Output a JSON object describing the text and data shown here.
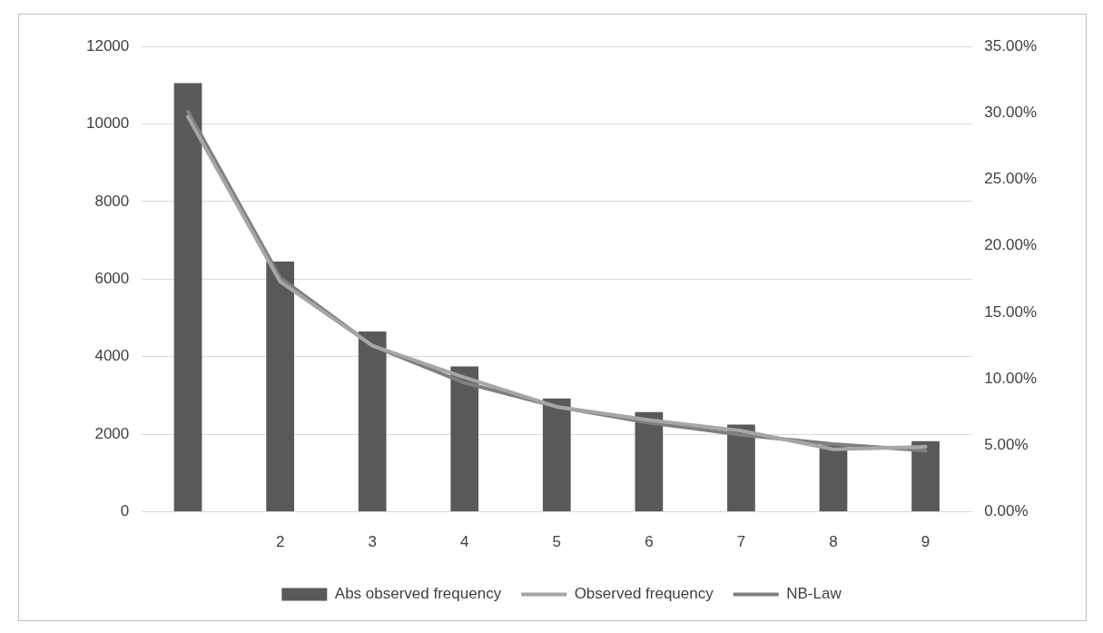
{
  "chart_data": {
    "type": "bar",
    "categories": [
      null,
      "2",
      "3",
      "4",
      "5",
      "6",
      "7",
      "8",
      "9"
    ],
    "series": [
      {
        "name": "Abs observed frequency",
        "color": "#595959",
        "values": [
          11050,
          6450,
          4650,
          3750,
          2920,
          2570,
          2250,
          1720,
          1820
        ]
      },
      {
        "name": "Observed frequency",
        "type": "line",
        "axis": "y2",
        "color": "#a6a6a6",
        "values": [
          29.7,
          17.3,
          12.5,
          10.1,
          7.9,
          6.9,
          6.1,
          4.7,
          4.9
        ]
      },
      {
        "name": "NB-Law",
        "type": "line",
        "axis": "y2",
        "color": "#7f7f7f",
        "values": [
          30.1,
          17.6,
          12.5,
          9.7,
          7.9,
          6.7,
          5.8,
          5.1,
          4.6
        ]
      }
    ],
    "ylim": [
      0,
      12000
    ],
    "yticks": [
      0,
      2000,
      4000,
      6000,
      8000,
      10000,
      12000
    ],
    "y2lim": [
      0,
      35
    ],
    "y2ticks": [
      {
        "value": 0,
        "label": "0.00%"
      },
      {
        "value": 5,
        "label": "5.00%"
      },
      {
        "value": 10,
        "label": "10.00%"
      },
      {
        "value": 15,
        "label": "15.00%"
      },
      {
        "value": 20,
        "label": "20.00%"
      },
      {
        "value": 25,
        "label": "25.00%"
      },
      {
        "value": 30,
        "label": "30.00%"
      },
      {
        "value": 35,
        "label": "35.00%"
      }
    ],
    "grid": "y",
    "legend": "bottom",
    "marker": "none"
  }
}
